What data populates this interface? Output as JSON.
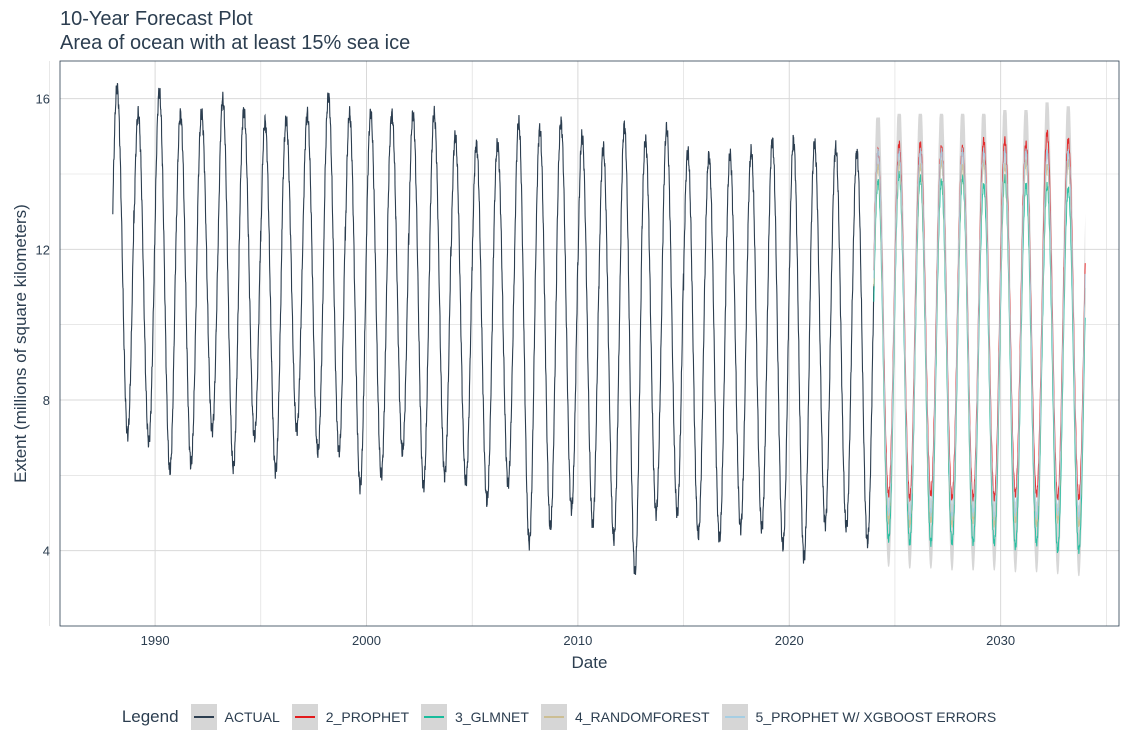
{
  "title": "10-Year Forecast Plot",
  "subtitle": "Area of ocean with at least 15% sea ice",
  "legend": {
    "title": "Legend",
    "items": [
      {
        "label": "ACTUAL",
        "color": "#2c3e50"
      },
      {
        "label": "2_PROPHET",
        "color": "#e31a1c"
      },
      {
        "label": "3_GLMNET",
        "color": "#18bc9c"
      },
      {
        "label": "4_RANDOMFOREST",
        "color": "#ccbe93"
      },
      {
        "label": "5_PROPHET W/ XGBOOST ERRORS",
        "color": "#a6cee3"
      }
    ]
  },
  "chart_data": {
    "type": "line",
    "xlabel": "Date",
    "ylabel": "Extent (millions of square kilometers)",
    "x_ticks": [
      "1990",
      "2000",
      "2010",
      "2020",
      "2030"
    ],
    "y_ticks": [
      4,
      8,
      12,
      16
    ],
    "xlim": [
      1985.5,
      2035.6
    ],
    "ylim": [
      2,
      17
    ],
    "grid": true,
    "legend_position": "bottom",
    "confidence_band_color": "#d0d0d0",
    "actual": {
      "name": "ACTUAL",
      "start_year": 1988,
      "end_year": 2024,
      "annual_max": [
        16.3,
        15.6,
        16.2,
        15.6,
        15.6,
        16.0,
        15.7,
        15.4,
        15.4,
        15.6,
        16.1,
        15.6,
        15.6,
        15.6,
        15.6,
        15.6,
        15.0,
        14.8,
        14.8,
        15.4,
        15.2,
        15.4,
        15.0,
        14.7,
        15.3,
        14.9,
        15.2,
        14.6,
        14.5,
        14.5,
        14.6,
        14.9,
        14.9,
        14.8,
        14.7,
        14.6
      ],
      "annual_min": [
        7.1,
        6.9,
        6.1,
        6.3,
        7.2,
        6.2,
        7.0,
        6.1,
        7.2,
        6.6,
        6.6,
        5.7,
        6.0,
        6.6,
        5.7,
        6.0,
        5.8,
        5.3,
        5.8,
        4.2,
        4.6,
        5.1,
        4.7,
        4.3,
        3.4,
        5.0,
        5.0,
        4.4,
        4.3,
        4.6,
        4.6,
        4.1,
        3.8,
        4.7,
        4.6,
        4.2
      ]
    },
    "forecast": {
      "start_year": 2024,
      "end_year": 2034,
      "series": [
        {
          "name": "2_PROPHET",
          "annual_max": [
            14.6,
            14.8,
            14.8,
            14.7,
            14.7,
            14.9,
            14.9,
            14.8,
            15.1,
            14.9
          ],
          "annual_min": [
            5.5,
            5.4,
            5.5,
            5.4,
            5.4,
            5.4,
            5.5,
            5.5,
            5.4,
            5.4
          ]
        },
        {
          "name": "3_GLMNET",
          "annual_max": [
            13.8,
            14.0,
            13.9,
            13.8,
            13.9,
            13.7,
            13.9,
            13.7,
            13.7,
            13.6
          ],
          "annual_min": [
            4.3,
            4.2,
            4.2,
            4.2,
            4.2,
            4.2,
            4.1,
            4.2,
            4.0,
            4.0
          ]
        },
        {
          "name": "4_RANDOMFOREST",
          "annual_max": [
            14.2,
            14.3,
            14.2,
            14.3,
            14.2,
            14.3,
            14.2,
            14.3,
            14.2,
            14.3
          ],
          "annual_min": [
            4.8,
            4.7,
            4.8,
            4.7,
            4.8,
            4.7,
            4.8,
            4.7,
            4.8,
            4.7
          ]
        },
        {
          "name": "5_PROPHET W/ XGBOOST ERRORS",
          "annual_max": [
            14.6,
            14.6,
            14.6,
            14.6,
            14.6,
            14.6,
            14.6,
            14.6,
            14.6,
            14.6
          ],
          "annual_min": [
            5.0,
            4.9,
            5.0,
            4.9,
            5.0,
            4.9,
            5.0,
            4.9,
            5.0,
            4.9
          ]
        }
      ],
      "band_max": [
        15.5,
        15.6,
        15.6,
        15.6,
        15.6,
        15.6,
        15.7,
        15.7,
        15.9,
        15.8
      ],
      "band_min": [
        3.2,
        3.1,
        3.1,
        3.0,
        3.0,
        3.0,
        2.9,
        2.9,
        2.8,
        2.7
      ]
    }
  }
}
